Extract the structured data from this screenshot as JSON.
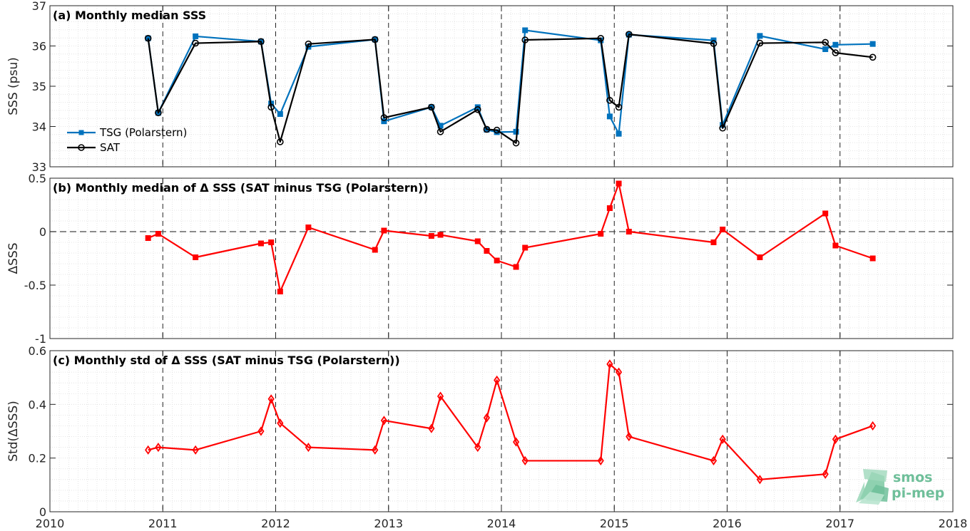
{
  "chart_data": [
    {
      "type": "line",
      "title": "(a) Monthly median SSS",
      "ylabel": "SSS (psu)",
      "xlim": [
        2010,
        2018
      ],
      "ylim": [
        33,
        37
      ],
      "yticks": [
        33,
        34,
        35,
        36,
        37
      ],
      "grid": true,
      "legend_placement": "bottom-left",
      "series": [
        {
          "name": "TSG (Polarstern)",
          "color": "#0072bd",
          "marker": "square",
          "x": [
            2010.87,
            2010.96,
            2011.29,
            2011.87,
            2011.96,
            2012.04,
            2012.29,
            2012.88,
            2012.96,
            2013.38,
            2013.46,
            2013.79,
            2013.87,
            2013.96,
            2014.13,
            2014.21,
            2014.88,
            2014.96,
            2015.04,
            2015.13,
            2015.88,
            2015.96,
            2016.29,
            2016.87,
            2016.96,
            2017.29
          ],
          "values": [
            36.19,
            34.34,
            36.24,
            36.11,
            34.57,
            34.31,
            35.98,
            36.16,
            34.13,
            34.48,
            34.02,
            34.48,
            33.92,
            33.86,
            33.87,
            36.39,
            36.14,
            34.25,
            33.82,
            36.28,
            36.14,
            34.04,
            36.25,
            35.92,
            36.03,
            36.05
          ]
        },
        {
          "name": "SAT",
          "color": "#000000",
          "marker": "circle",
          "x": [
            2010.87,
            2010.96,
            2011.29,
            2011.87,
            2011.96,
            2012.04,
            2012.29,
            2012.88,
            2012.96,
            2013.38,
            2013.46,
            2013.79,
            2013.87,
            2013.96,
            2014.13,
            2014.21,
            2014.88,
            2014.96,
            2015.04,
            2015.13,
            2015.88,
            2015.96,
            2016.29,
            2016.87,
            2016.96,
            2017.29
          ],
          "values": [
            36.19,
            34.34,
            36.07,
            36.11,
            34.48,
            33.62,
            36.05,
            36.16,
            34.22,
            34.48,
            33.87,
            34.42,
            33.93,
            33.91,
            33.59,
            36.15,
            36.19,
            34.65,
            34.48,
            36.29,
            36.06,
            33.96,
            36.07,
            36.09,
            35.83,
            35.72
          ]
        }
      ]
    },
    {
      "type": "line",
      "title": "(b) Monthly median of Δ SSS (SAT minus TSG (Polarstern))",
      "ylabel": "ΔSSS",
      "xlim": [
        2010,
        2018
      ],
      "ylim": [
        -1,
        0.5
      ],
      "yticks": [
        -1,
        -0.5,
        0,
        0.5
      ],
      "reference_line": 0,
      "grid": true,
      "series": [
        {
          "color": "#ff0000",
          "marker": "square",
          "x": [
            2010.87,
            2010.96,
            2011.29,
            2011.87,
            2011.96,
            2012.04,
            2012.29,
            2012.88,
            2012.96,
            2013.38,
            2013.46,
            2013.79,
            2013.87,
            2013.96,
            2014.13,
            2014.21,
            2014.88,
            2014.96,
            2015.04,
            2015.13,
            2015.88,
            2015.96,
            2016.29,
            2016.87,
            2016.96,
            2017.29
          ],
          "values": [
            -0.06,
            -0.02,
            -0.24,
            -0.11,
            -0.1,
            -0.56,
            0.04,
            -0.17,
            0.01,
            -0.04,
            -0.03,
            -0.09,
            -0.18,
            -0.27,
            -0.33,
            -0.15,
            -0.02,
            0.22,
            0.45,
            0.0,
            -0.1,
            0.02,
            -0.24,
            0.17,
            -0.13,
            -0.25
          ]
        }
      ]
    },
    {
      "type": "line",
      "title": "(c) Monthly std of Δ SSS (SAT minus TSG (Polarstern))",
      "ylabel": "Std(ΔSSS)",
      "xlim": [
        2010,
        2018
      ],
      "ylim": [
        0,
        0.6
      ],
      "yticks": [
        0,
        0.2,
        0.4,
        0.6
      ],
      "xticks": [
        2010,
        2011,
        2012,
        2013,
        2014,
        2015,
        2016,
        2017,
        2018
      ],
      "grid": true,
      "series": [
        {
          "color": "#ff0000",
          "marker": "diamond",
          "x": [
            2010.87,
            2010.96,
            2011.29,
            2011.87,
            2011.96,
            2012.04,
            2012.29,
            2012.88,
            2012.96,
            2013.38,
            2013.46,
            2013.79,
            2013.87,
            2013.96,
            2014.13,
            2014.21,
            2014.88,
            2014.96,
            2015.04,
            2015.13,
            2015.88,
            2015.96,
            2016.29,
            2016.87,
            2016.96,
            2017.29
          ],
          "values": [
            0.23,
            0.24,
            0.23,
            0.3,
            0.42,
            0.33,
            0.24,
            0.23,
            0.34,
            0.31,
            0.43,
            0.24,
            0.35,
            0.49,
            0.26,
            0.19,
            0.19,
            0.55,
            0.52,
            0.28,
            0.19,
            0.27,
            0.12,
            0.14,
            0.27,
            0.32
          ]
        }
      ]
    }
  ],
  "logo": {
    "line1": "smos",
    "line2": "pi-mep"
  }
}
